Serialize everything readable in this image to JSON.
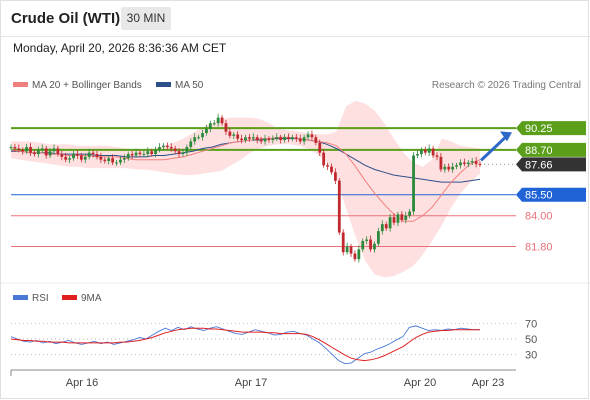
{
  "header": {
    "title": "Crude Oil (WTI)",
    "timeframe": "30 MIN",
    "datetime": "Monday, April 20, 2026 8:36:36 AM CET"
  },
  "legend": {
    "ma20": "MA 20 + Bollinger Bands",
    "ma50": "MA 50",
    "credit": "Research © 2026 Trading Central",
    "rsi": "RSI",
    "ma9": "9MA"
  },
  "colors": {
    "ma20": "#f08080",
    "ma50": "#2c4f8a",
    "band": "#ffd6d6",
    "resistance": "#5a9e1a",
    "support": "#e8707a",
    "pivot": "#1f63d6",
    "current": "#333333",
    "candle_up": "#2a8a3a",
    "candle_down": "#c0282e",
    "rsi": "#4a78d6",
    "rsi_ma": "#e02020",
    "arrow": "#2f69c8"
  },
  "chart_data": {
    "type": "candlestick",
    "title": "Crude Oil (WTI)",
    "timeframe": "30 MIN",
    "x_tick_labels": [
      "Apr 16",
      "Apr 17",
      "Apr 20",
      "Apr 23"
    ],
    "ylim": [
      79.2,
      92.4
    ],
    "levels": [
      {
        "label": "90.25",
        "value": 90.25,
        "kind": "resistance"
      },
      {
        "label": "88.70",
        "value": 88.7,
        "kind": "resistance"
      },
      {
        "label": "87.66",
        "value": 87.66,
        "kind": "current"
      },
      {
        "label": "85.50",
        "value": 85.5,
        "kind": "pivot"
      },
      {
        "label": "84.00",
        "value": 84.0,
        "kind": "support"
      },
      {
        "label": "81.80",
        "value": 81.8,
        "kind": "support"
      }
    ],
    "close": [
      88.9,
      88.8,
      88.7,
      88.6,
      88.9,
      88.5,
      88.4,
      88.7,
      88.8,
      88.3,
      88.6,
      88.8,
      88.4,
      88.2,
      88.0,
      88.1,
      88.4,
      88.3,
      88.0,
      88.2,
      88.5,
      88.4,
      88.2,
      88.0,
      87.9,
      88.1,
      87.8,
      87.8,
      88.0,
      88.1,
      88.4,
      88.3,
      88.5,
      88.4,
      88.4,
      88.6,
      88.4,
      88.7,
      88.9,
      89.0,
      88.9,
      88.8,
      88.6,
      88.4,
      88.5,
      88.9,
      89.3,
      89.6,
      89.6,
      89.9,
      90.2,
      90.6,
      90.6,
      91.0,
      90.6,
      90.0,
      89.7,
      89.8,
      89.5,
      89.4,
      89.6,
      89.5,
      89.6,
      89.4,
      89.3,
      89.5,
      89.4,
      89.5,
      89.6,
      89.4,
      89.6,
      89.5,
      89.6,
      89.5,
      89.3,
      89.6,
      89.8,
      89.6,
      89.2,
      88.5,
      87.6,
      87.5,
      87.1,
      86.5,
      82.8,
      81.4,
      81.8,
      81.3,
      80.9,
      81.6,
      82.2,
      82.3,
      81.6,
      82.0,
      82.9,
      83.4,
      83.1,
      83.9,
      83.5,
      84.1,
      83.7,
      84.0,
      84.3,
      88.3,
      88.4,
      88.7,
      88.5,
      88.8,
      88.3,
      88.2,
      87.3,
      87.5,
      87.3,
      87.5,
      87.6,
      87.8,
      87.7,
      87.8,
      87.9,
      87.7,
      87.66
    ],
    "ma20": [
      88.7,
      88.6,
      88.5,
      88.5,
      88.4,
      88.4,
      88.3,
      88.3,
      88.3,
      88.2,
      88.2,
      88.2,
      88.1,
      88.0,
      88.0,
      88.0,
      88.0,
      88.1,
      88.2,
      88.4,
      88.6,
      88.8,
      89.0,
      89.2,
      89.3,
      89.4,
      89.5,
      89.5,
      89.6,
      89.6,
      89.5,
      89.4,
      89.3,
      89.2,
      89.0,
      88.4,
      87.5,
      86.5,
      85.6,
      84.8,
      84.1,
      83.6,
      83.6,
      84.0,
      84.6,
      85.5,
      86.4,
      87.1,
      87.7,
      88.0
    ],
    "ma50": [
      88.6,
      88.6,
      88.5,
      88.5,
      88.5,
      88.4,
      88.4,
      88.4,
      88.4,
      88.3,
      88.3,
      88.3,
      88.2,
      88.2,
      88.2,
      88.3,
      88.3,
      88.4,
      88.5,
      88.6,
      88.8,
      88.9,
      89.1,
      89.2,
      89.3,
      89.4,
      89.4,
      89.5,
      89.5,
      89.5,
      89.5,
      89.4,
      89.3,
      89.1,
      88.8,
      88.4,
      88.0,
      87.6,
      87.3,
      87.1,
      86.9,
      86.8,
      86.7,
      86.6,
      86.5,
      86.4,
      86.4,
      86.4,
      86.5,
      86.6
    ],
    "bb_upper": [
      89.3,
      89.3,
      89.3,
      89.2,
      89.1,
      89.1,
      89.1,
      89.0,
      89.0,
      89.0,
      89.0,
      88.9,
      88.8,
      88.7,
      88.7,
      88.8,
      89.0,
      89.2,
      89.5,
      89.9,
      90.3,
      90.6,
      90.9,
      91.0,
      91.0,
      91.0,
      90.9,
      90.6,
      90.2,
      90.1,
      90.0,
      89.9,
      89.8,
      89.8,
      90.0,
      91.8,
      92.2,
      92.0,
      91.5,
      90.6,
      89.5,
      88.5,
      87.8,
      87.5,
      88.0,
      89.5,
      89.3,
      89.0,
      88.9,
      88.8
    ],
    "bb_lower": [
      88.1,
      88.0,
      87.9,
      87.8,
      87.7,
      87.6,
      87.5,
      87.5,
      87.4,
      87.4,
      87.4,
      87.4,
      87.4,
      87.3,
      87.3,
      87.2,
      87.1,
      87.0,
      86.9,
      86.9,
      87.0,
      87.1,
      87.2,
      87.6,
      88.0,
      88.5,
      88.8,
      89.0,
      89.1,
      89.1,
      89.0,
      88.8,
      88.4,
      87.8,
      86.7,
      84.5,
      82.5,
      80.8,
      79.8,
      79.6,
      79.7,
      80.0,
      80.4,
      81.2,
      82.2,
      83.3,
      84.6,
      85.6,
      86.4,
      87.0
    ]
  },
  "rsi_chart": {
    "type": "line",
    "ylim": [
      15,
      85
    ],
    "tick_labels": [
      "70",
      "50",
      "30"
    ],
    "tick_values": [
      70,
      50,
      30
    ],
    "rsi": [
      53,
      50,
      47,
      46,
      48,
      45,
      47,
      44,
      46,
      48,
      45,
      43,
      45,
      47,
      44,
      46,
      43,
      45,
      47,
      49,
      52,
      50,
      55,
      60,
      64,
      61,
      65,
      62,
      66,
      63,
      61,
      64,
      66,
      63,
      60,
      57,
      56,
      59,
      62,
      60,
      58,
      55,
      56,
      59,
      60,
      57,
      55,
      50,
      45,
      38,
      30,
      22,
      18,
      19,
      25,
      31,
      33,
      37,
      40,
      44,
      49,
      53,
      65,
      67,
      64,
      61,
      62,
      61,
      63,
      62,
      64,
      63,
      62,
      62
    ],
    "rsi_ma": [
      50,
      49,
      48,
      48,
      47,
      47,
      46,
      46,
      46,
      45,
      45,
      45,
      45,
      45,
      45,
      45,
      45,
      46,
      46,
      47,
      48,
      50,
      52,
      55,
      58,
      60,
      62,
      63,
      64,
      64,
      64,
      63,
      63,
      62,
      61,
      60,
      59,
      59,
      59,
      59,
      58,
      58,
      57,
      57,
      57,
      57,
      56,
      53,
      49,
      44,
      39,
      34,
      29,
      25,
      23,
      22,
      23,
      25,
      28,
      32,
      36,
      40,
      46,
      52,
      56,
      59,
      60,
      61,
      61,
      62,
      62,
      62,
      62,
      62
    ]
  }
}
